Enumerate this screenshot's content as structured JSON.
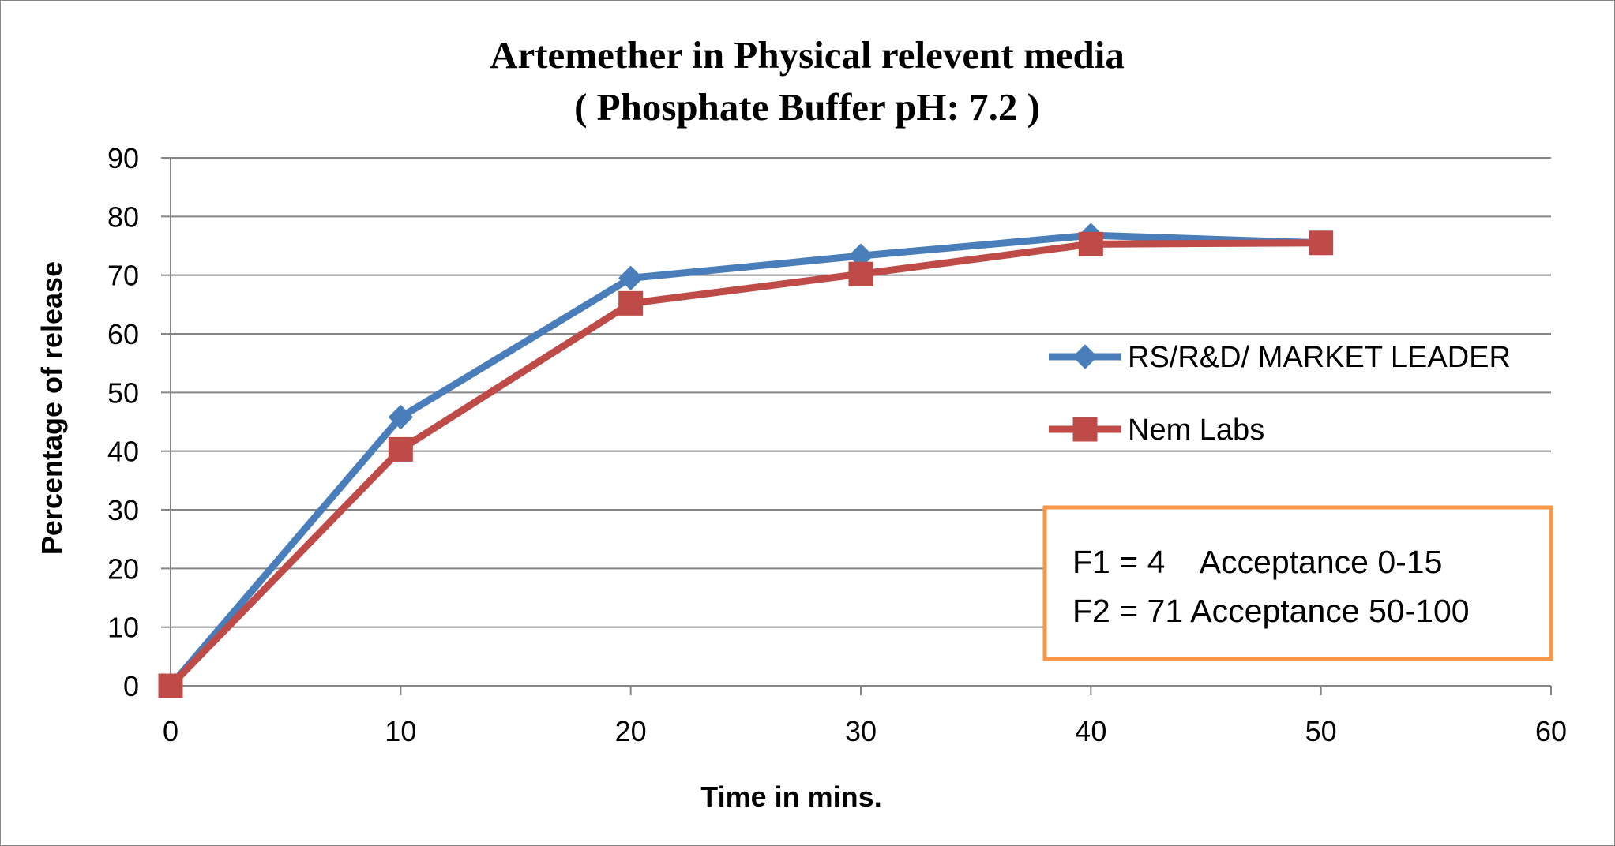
{
  "chart_data": {
    "type": "line",
    "title": "Artemether in Physical relevent media",
    "subtitle": "( Phosphate Buffer pH: 7.2 )",
    "xlabel": "Time in mins.",
    "ylabel": "Percentage of release",
    "x": [
      0,
      10,
      20,
      30,
      40,
      50
    ],
    "xlim": [
      0,
      60
    ],
    "ylim": [
      0,
      90
    ],
    "x_ticks": [
      "0",
      "10",
      "20",
      "30",
      "40",
      "50",
      "60"
    ],
    "y_ticks": [
      "0",
      "10",
      "20",
      "30",
      "40",
      "50",
      "60",
      "70",
      "80",
      "90"
    ],
    "grid": "horizontal",
    "legend_position": "right",
    "series": [
      {
        "name": "RS/R&D/ MARKET LEADER",
        "values": [
          0,
          45.8,
          69.5,
          73.3,
          76.8,
          75.5
        ],
        "color": "#4A7EBB",
        "marker": "diamond"
      },
      {
        "name": "Nem Labs",
        "values": [
          0,
          40.3,
          65.2,
          70.2,
          75.3,
          75.5
        ],
        "color": "#BE4B48",
        "marker": "square"
      }
    ],
    "annotation": {
      "lines": [
        "F1 = 4    Acceptance 0-15",
        "F2 = 71 Acceptance 50-100"
      ],
      "border_color": "#F79646"
    }
  }
}
